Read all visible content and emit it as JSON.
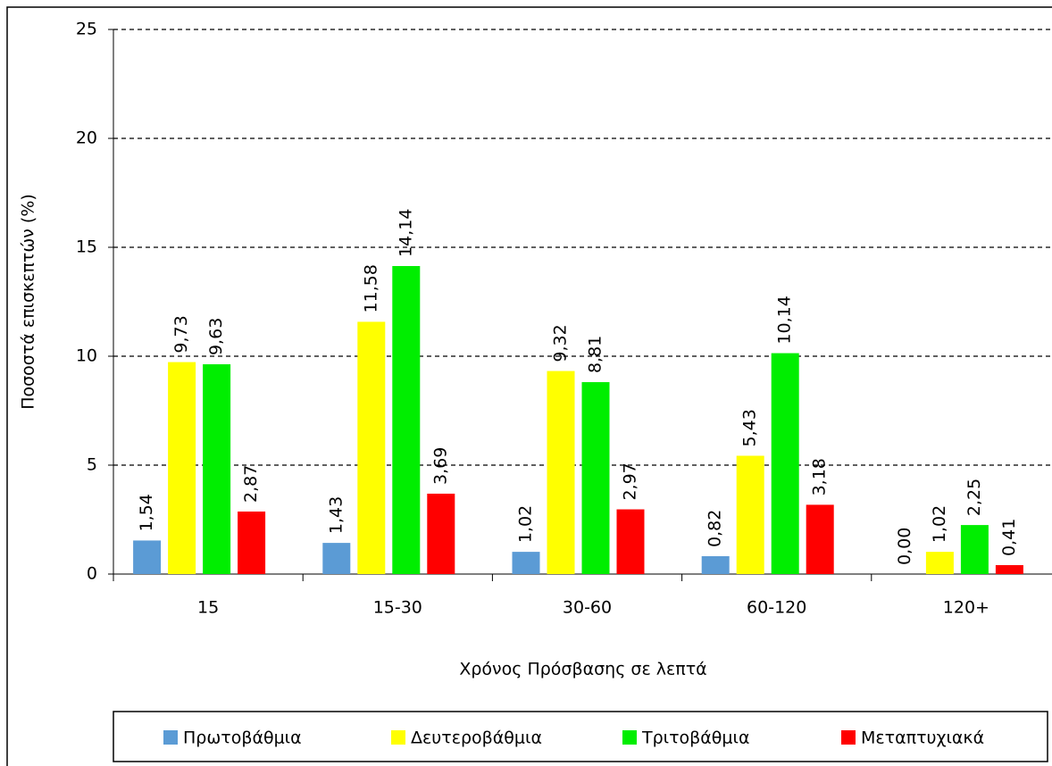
{
  "chart_data": {
    "type": "bar",
    "x_label": "Χρόνος Πρόσβασης σε λεπτά",
    "y_label": "Ποσοστά επισκεπτών (%)",
    "categories": [
      "15",
      "15-30",
      "30-60",
      "60-120",
      "120+"
    ],
    "series": [
      {
        "name": "Πρωτοβάθμια",
        "color": "#5b9bd5",
        "values": [
          1.54,
          1.43,
          1.02,
          0.82,
          0.0
        ],
        "value_labels": [
          "1,54",
          "1,43",
          "1,02",
          "0,82",
          "0,00"
        ]
      },
      {
        "name": "Δευτεροβάθμια",
        "color": "#ffff00",
        "values": [
          9.73,
          11.58,
          9.32,
          5.43,
          1.02
        ],
        "value_labels": [
          "9,73",
          "11,58",
          "9,32",
          "5,43",
          "1,02"
        ]
      },
      {
        "name": "Τριτοβάθμια",
        "color": "#00ee00",
        "values": [
          9.63,
          14.14,
          8.81,
          10.14,
          2.25
        ],
        "value_labels": [
          "9,63",
          "14,14",
          "8,81",
          "10,14",
          "2,25"
        ]
      },
      {
        "name": "Μεταπτυχιακά",
        "color": "#ff0000",
        "values": [
          2.87,
          3.69,
          2.97,
          3.18,
          0.41
        ],
        "value_labels": [
          "2,87",
          "3,69",
          "2,97",
          "3,18",
          "0,41"
        ]
      }
    ],
    "ylim": [
      0,
      25
    ],
    "yticks": [
      0,
      5,
      10,
      15,
      20,
      25
    ],
    "grid": true,
    "legend": "bottom"
  }
}
